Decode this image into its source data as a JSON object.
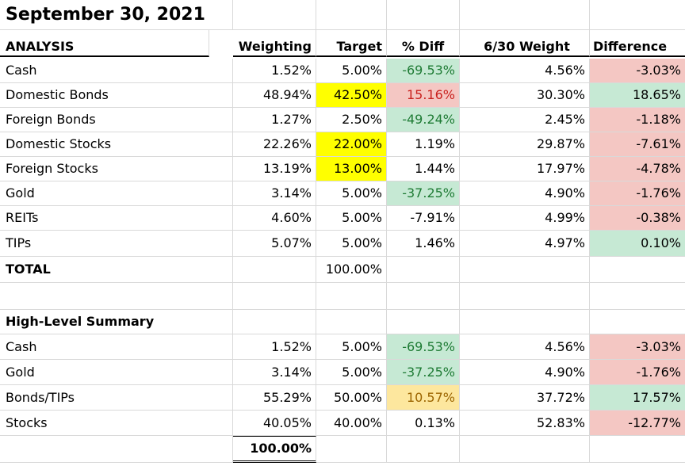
{
  "title": "September 30, 2021",
  "analysis_label": "ANALYSIS",
  "headers": {
    "weighting": "Weighting",
    "target": "Target",
    "pct_diff": "% Diff",
    "weight_6_30": "6/30 Weight",
    "difference": "Difference"
  },
  "rows": [
    {
      "name": "Cash",
      "weighting": "1.52%",
      "target": "5.00%",
      "pct_diff": "-69.53%",
      "weight_6_30": "4.56%",
      "difference": "-3.03%"
    },
    {
      "name": "Domestic Bonds",
      "weighting": "48.94%",
      "target": "42.50%",
      "pct_diff": "15.16%",
      "weight_6_30": "30.30%",
      "difference": "18.65%"
    },
    {
      "name": "Foreign Bonds",
      "weighting": "1.27%",
      "target": "2.50%",
      "pct_diff": "-49.24%",
      "weight_6_30": "2.45%",
      "difference": "-1.18%"
    },
    {
      "name": "Domestic Stocks",
      "weighting": "22.26%",
      "target": "22.00%",
      "pct_diff": "1.19%",
      "weight_6_30": "29.87%",
      "difference": "-7.61%"
    },
    {
      "name": "Foreign Stocks",
      "weighting": "13.19%",
      "target": "13.00%",
      "pct_diff": "1.44%",
      "weight_6_30": "17.97%",
      "difference": "-4.78%"
    },
    {
      "name": "Gold",
      "weighting": "3.14%",
      "target": "5.00%",
      "pct_diff": "-37.25%",
      "weight_6_30": "4.90%",
      "difference": "-1.76%"
    },
    {
      "name": "REITs",
      "weighting": "4.60%",
      "target": "5.00%",
      "pct_diff": "-7.91%",
      "weight_6_30": "4.99%",
      "difference": "-0.38%"
    },
    {
      "name": "TIPs",
      "weighting": "5.07%",
      "target": "5.00%",
      "pct_diff": "1.46%",
      "weight_6_30": "4.97%",
      "difference": "0.10%"
    }
  ],
  "total": {
    "label": "TOTAL",
    "target": "100.00%"
  },
  "summary_title": "High-Level Summary",
  "summary": [
    {
      "name": "Cash",
      "weighting": "1.52%",
      "target": "5.00%",
      "pct_diff": "-69.53%",
      "weight_6_30": "4.56%",
      "difference": "-3.03%"
    },
    {
      "name": "Gold",
      "weighting": "3.14%",
      "target": "5.00%",
      "pct_diff": "-37.25%",
      "weight_6_30": "4.90%",
      "difference": "-1.76%"
    },
    {
      "name": "Bonds/TIPs",
      "weighting": "55.29%",
      "target": "50.00%",
      "pct_diff": "10.57%",
      "weight_6_30": "37.72%",
      "difference": "17.57%"
    },
    {
      "name": "Stocks",
      "weighting": "40.05%",
      "target": "40.00%",
      "pct_diff": "0.13%",
      "weight_6_30": "52.83%",
      "difference": "-12.77%"
    }
  ],
  "summary_total": "100.00%",
  "colors": {
    "green_fill": "#c6e9d4",
    "red_fill": "#f4c7c3",
    "yellow_fill": "#ffff00",
    "light_yellow_fill": "#fde79e",
    "green_text": "#1e7b34",
    "red_text": "#c9211e"
  }
}
